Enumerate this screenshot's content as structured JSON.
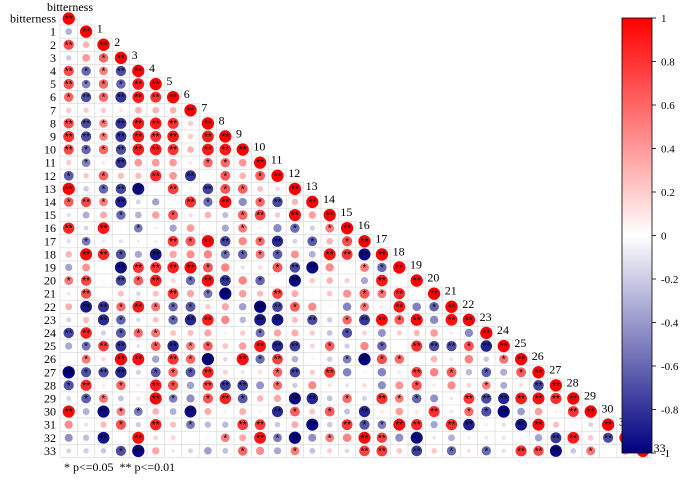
{
  "chart_data": {
    "type": "heatmap",
    "subtype": "lower-triangular correlation matrix (circle glyphs)",
    "title": "bitterness",
    "variables": [
      "bitterness",
      "1",
      "2",
      "3",
      "4",
      "5",
      "6",
      "7",
      "8",
      "9",
      "10",
      "11",
      "12",
      "13",
      "14",
      "15",
      "16",
      "17",
      "18",
      "19",
      "20",
      "21",
      "22",
      "23",
      "24",
      "25",
      "26",
      "27",
      "28",
      "29",
      "30",
      "31",
      "32",
      "33"
    ],
    "colorbar": {
      "range": [
        -1,
        1
      ],
      "ticks": [
        1,
        0.8,
        0.6,
        0.4,
        0.2,
        0,
        -0.2,
        -0.4,
        -0.6,
        -0.8,
        -1
      ],
      "low_color": "#000080",
      "mid_color": "#ffffff",
      "high_color": "#ff0000"
    },
    "legend_note": "* p<=0.05  ** p<=0.01",
    "significance_marker": "*",
    "seed_values": [
      [
        1
      ],
      [
        -0.3,
        1
      ],
      [
        0.7,
        0.3,
        1
      ],
      [
        -0.2,
        0.4,
        0.6,
        1
      ],
      [
        0.7,
        -0.6,
        0.5,
        -0.7,
        1
      ],
      [
        0.7,
        -0.5,
        0.6,
        -0.6,
        0.9,
        1
      ],
      [
        0.6,
        -0.7,
        0.6,
        -0.8,
        0.9,
        0.8,
        1
      ],
      [
        0.2,
        0.2,
        0.2,
        0.1,
        0.3,
        0.3,
        0.3,
        1
      ],
      [
        0.7,
        -0.7,
        0.5,
        -0.8,
        0.9,
        0.9,
        0.8,
        0.2,
        1
      ],
      [
        0.8,
        -0.7,
        0.5,
        -0.8,
        0.9,
        0.8,
        0.9,
        0.2,
        0.9,
        1
      ],
      [
        0.7,
        -0.6,
        0.6,
        -0.7,
        0.9,
        0.9,
        0.8,
        0.3,
        0.9,
        0.9,
        1
      ],
      [
        0.2,
        -0.5,
        0.1,
        -0.8,
        0.4,
        0.4,
        0.4,
        0.1,
        0.6,
        0.6,
        0.4,
        1
      ]
    ]
  }
}
